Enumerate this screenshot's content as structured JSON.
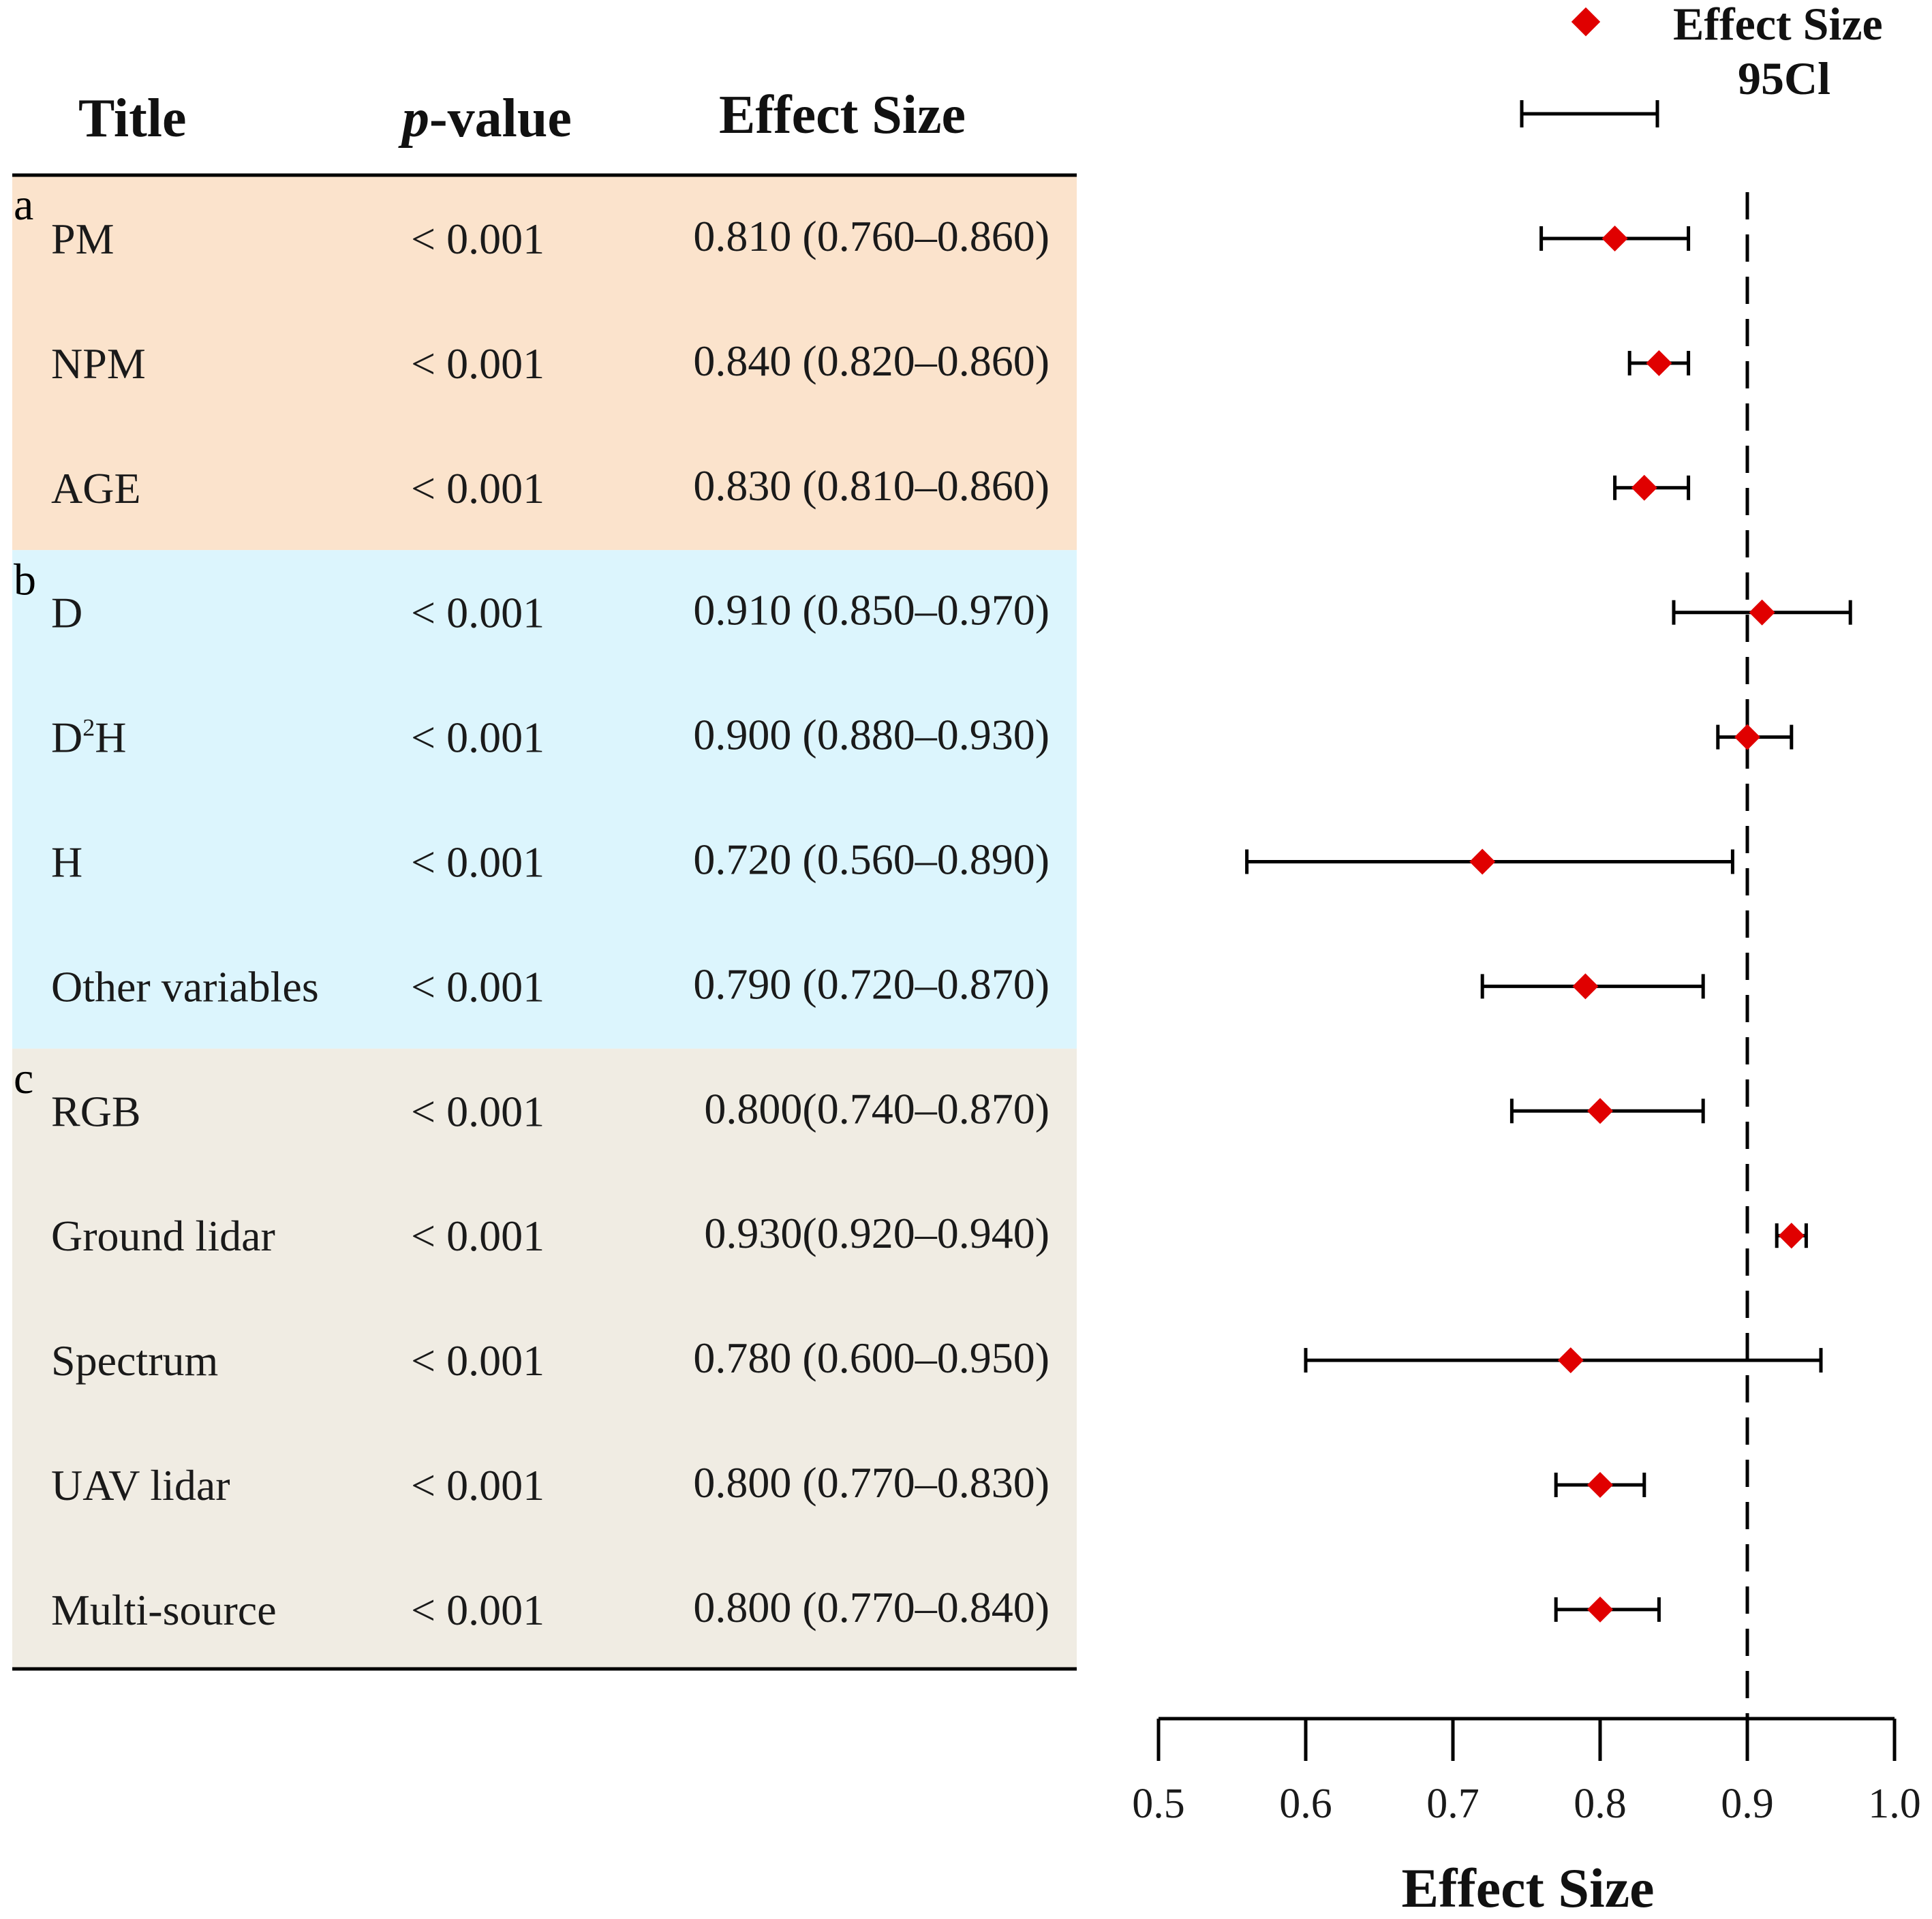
{
  "table": {
    "headers": {
      "title": "Title",
      "p_prefix": "p",
      "p_suffix": "-value",
      "effect": "Effect Size"
    },
    "groups": [
      {
        "letter": "a",
        "color": "#fbe3cc"
      },
      {
        "letter": "b",
        "color": "#dcf5fd"
      },
      {
        "letter": "c",
        "color": "#f0ece3"
      }
    ]
  },
  "legend": {
    "effect_label": "Effect Size",
    "ci_label": "95Cl",
    "marker_color": "#e00000"
  },
  "chart_data": {
    "type": "forest",
    "xlabel": "Effect Size",
    "xlim": [
      0.5,
      1.0
    ],
    "ticks": [
      "0.5",
      "0.6",
      "0.7",
      "0.8",
      "0.9",
      "1.0"
    ],
    "reference_line": 0.9,
    "rows": [
      {
        "group": 0,
        "title": "PM",
        "title_sup": "",
        "title_rest": "",
        "p": "< 0.001",
        "text": "0.810 (0.760–0.860)",
        "est": 0.81,
        "lo": 0.76,
        "hi": 0.86
      },
      {
        "group": 0,
        "title": "NPM",
        "title_sup": "",
        "title_rest": "",
        "p": "< 0.001",
        "text": "0.840 (0.820–0.860)",
        "est": 0.84,
        "lo": 0.82,
        "hi": 0.86
      },
      {
        "group": 0,
        "title": "AGE",
        "title_sup": "",
        "title_rest": "",
        "p": "< 0.001",
        "text": "0.830 (0.810–0.860)",
        "est": 0.83,
        "lo": 0.81,
        "hi": 0.86
      },
      {
        "group": 1,
        "title": "D",
        "title_sup": "",
        "title_rest": "",
        "p": "< 0.001",
        "text": "0.910 (0.850–0.970)",
        "est": 0.91,
        "lo": 0.85,
        "hi": 0.97
      },
      {
        "group": 1,
        "title": "D",
        "title_sup": "2",
        "title_rest": "H",
        "p": "< 0.001",
        "text": "0.900 (0.880–0.930)",
        "est": 0.9,
        "lo": 0.88,
        "hi": 0.93
      },
      {
        "group": 1,
        "title": "H",
        "title_sup": "",
        "title_rest": "",
        "p": "< 0.001",
        "text": "0.720 (0.560–0.890)",
        "est": 0.72,
        "lo": 0.56,
        "hi": 0.89
      },
      {
        "group": 1,
        "title": "Other variables",
        "title_sup": "",
        "title_rest": "",
        "p": "< 0.001",
        "text": "0.790 (0.720–0.870)",
        "est": 0.79,
        "lo": 0.72,
        "hi": 0.87
      },
      {
        "group": 2,
        "title": "RGB",
        "title_sup": "",
        "title_rest": "",
        "p": "< 0.001",
        "text": "0.800(0.740–0.870)",
        "est": 0.8,
        "lo": 0.74,
        "hi": 0.87
      },
      {
        "group": 2,
        "title": "Ground lidar",
        "title_sup": "",
        "title_rest": "",
        "p": "< 0.001",
        "text": "0.930(0.920–0.940)",
        "est": 0.93,
        "lo": 0.92,
        "hi": 0.94
      },
      {
        "group": 2,
        "title": "Spectrum",
        "title_sup": "",
        "title_rest": "",
        "p": "< 0.001",
        "text": "0.780 (0.600–0.950)",
        "est": 0.78,
        "lo": 0.6,
        "hi": 0.95
      },
      {
        "group": 2,
        "title": "UAV lidar",
        "title_sup": "",
        "title_rest": "",
        "p": "< 0.001",
        "text": "0.800 (0.770–0.830)",
        "est": 0.8,
        "lo": 0.77,
        "hi": 0.83
      },
      {
        "group": 2,
        "title": "Multi-source",
        "title_sup": "",
        "title_rest": "",
        "p": "< 0.001",
        "text": "0.800 (0.770–0.840)",
        "est": 0.8,
        "lo": 0.77,
        "hi": 0.84
      }
    ]
  }
}
